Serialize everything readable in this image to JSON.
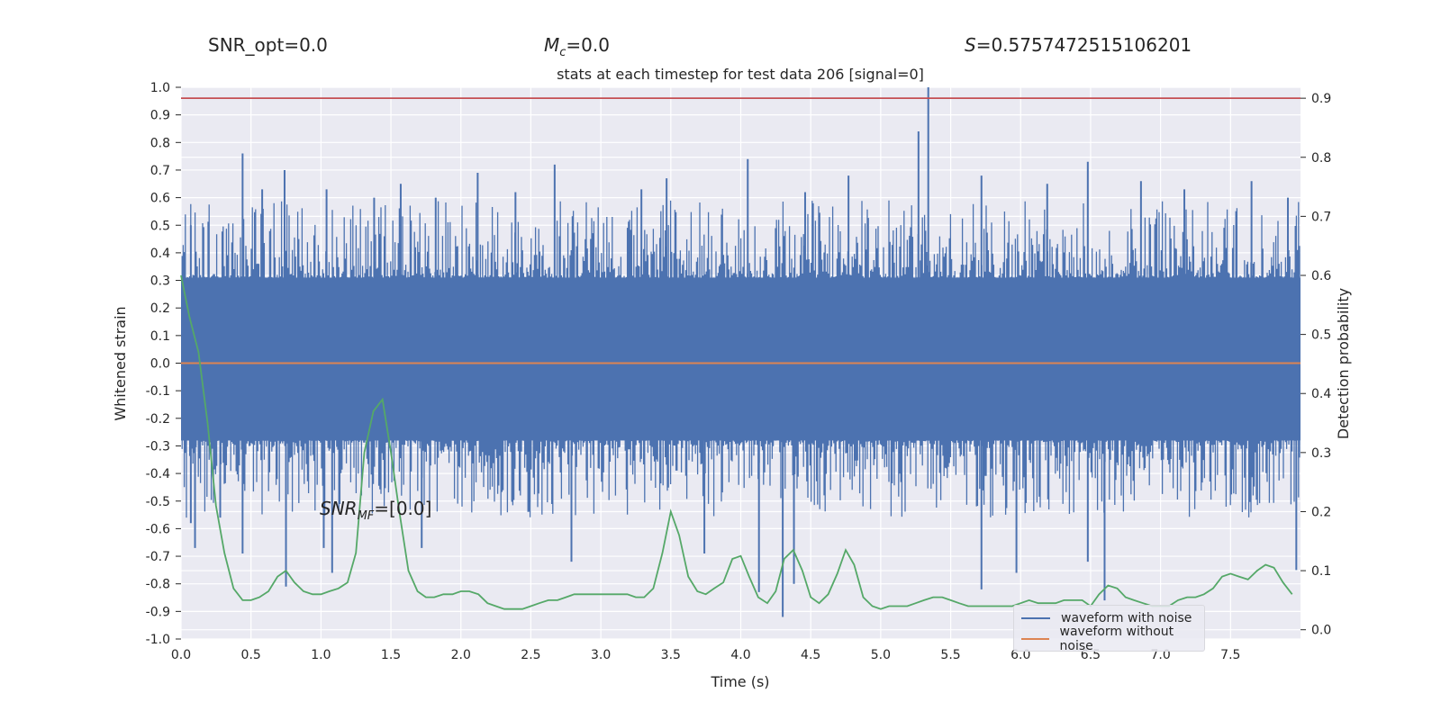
{
  "header": {
    "snr_opt": "SNR_opt=0.0",
    "mc_symbol": "M",
    "mc_sub": "c",
    "mc_value": "=0.0",
    "s_symbol": "S",
    "s_value": "=0.5757472515106201"
  },
  "annotation": {
    "symbol": "SNR",
    "sub": "MF",
    "value": "=[0.0]"
  },
  "chart_data": {
    "type": "line",
    "title": "stats at each timestep for test data 206 [signal=0]",
    "xlabel": "Time (s)",
    "ylabel": "Whitened strain",
    "y2label": "Detection probability",
    "xlim": [
      0.0,
      8.0
    ],
    "ylim": [
      -1.0,
      1.0
    ],
    "y2lim": [
      -0.0157,
      0.9185
    ],
    "xticks": [
      0.0,
      0.5,
      1.0,
      1.5,
      2.0,
      2.5,
      3.0,
      3.5,
      4.0,
      4.5,
      5.0,
      5.5,
      6.0,
      6.5,
      7.0,
      7.5
    ],
    "yticks": [
      -1.0,
      -0.9,
      -0.8,
      -0.7,
      -0.6,
      -0.5,
      -0.4,
      -0.3,
      -0.2,
      -0.1,
      0.0,
      0.1,
      0.2,
      0.3,
      0.4,
      0.5,
      0.6,
      0.7,
      0.8,
      0.9,
      1.0
    ],
    "y2ticks": [
      0.0,
      0.1,
      0.2,
      0.3,
      0.4,
      0.5,
      0.6,
      0.7,
      0.8,
      0.9
    ],
    "grid": true,
    "legend_position": "lower-right",
    "threshold_line": {
      "y": 0.9,
      "color": "#c44e52"
    },
    "series": [
      {
        "name": "waveform with noise",
        "color": "#4c72b0",
        "axis": "left",
        "kind": "dense-noise",
        "band_upper": 0.33,
        "band_lower": -0.3,
        "peaks": [
          [
            0.44,
            0.76
          ],
          [
            0.07,
            0.5
          ],
          [
            0.58,
            0.63
          ],
          [
            0.74,
            0.7
          ],
          [
            1.04,
            0.63
          ],
          [
            1.38,
            0.6
          ],
          [
            1.57,
            0.65
          ],
          [
            1.82,
            0.6
          ],
          [
            2.12,
            0.69
          ],
          [
            2.39,
            0.62
          ],
          [
            2.67,
            0.72
          ],
          [
            3.29,
            0.63
          ],
          [
            3.47,
            0.67
          ],
          [
            4.05,
            0.74
          ],
          [
            4.46,
            0.62
          ],
          [
            4.77,
            0.68
          ],
          [
            5.27,
            0.84
          ],
          [
            5.34,
            1.0
          ],
          [
            5.72,
            0.68
          ],
          [
            6.19,
            0.65
          ],
          [
            6.48,
            0.73
          ],
          [
            6.86,
            0.66
          ],
          [
            7.17,
            0.63
          ],
          [
            7.65,
            0.66
          ],
          [
            7.91,
            0.6
          ]
        ],
        "troughs": [
          [
            0.07,
            -0.58
          ],
          [
            0.1,
            -0.67
          ],
          [
            0.28,
            -0.56
          ],
          [
            0.44,
            -0.69
          ],
          [
            0.75,
            -0.81
          ],
          [
            1.02,
            -0.67
          ],
          [
            1.08,
            -0.76
          ],
          [
            1.72,
            -0.67
          ],
          [
            2.79,
            -0.72
          ],
          [
            3.74,
            -0.69
          ],
          [
            4.13,
            -0.83
          ],
          [
            4.3,
            -0.92
          ],
          [
            4.38,
            -0.8
          ],
          [
            5.72,
            -0.82
          ],
          [
            5.97,
            -0.76
          ],
          [
            6.48,
            -0.72
          ],
          [
            6.6,
            -0.86
          ],
          [
            7.97,
            -0.75
          ]
        ]
      },
      {
        "name": "waveform without noise",
        "color": "#dd8452",
        "axis": "left",
        "x": [
          0.0,
          8.0
        ],
        "y": [
          0.0,
          0.0
        ]
      },
      {
        "color": "#55a868",
        "axis": "right",
        "x": [
          0.0,
          0.06,
          0.125,
          0.19,
          0.25,
          0.31,
          0.375,
          0.44,
          0.5,
          0.56,
          0.625,
          0.69,
          0.75,
          0.81,
          0.875,
          0.94,
          1.0,
          1.06,
          1.125,
          1.19,
          1.25,
          1.31,
          1.375,
          1.44,
          1.5,
          1.56,
          1.625,
          1.69,
          1.75,
          1.81,
          1.875,
          1.94,
          2.0,
          2.06,
          2.125,
          2.19,
          2.25,
          2.31,
          2.375,
          2.44,
          2.5,
          2.56,
          2.625,
          2.69,
          2.75,
          2.81,
          2.875,
          2.94,
          3.0,
          3.06,
          3.125,
          3.19,
          3.25,
          3.31,
          3.375,
          3.44,
          3.5,
          3.56,
          3.625,
          3.69,
          3.75,
          3.81,
          3.875,
          3.94,
          4.0,
          4.06,
          4.125,
          4.19,
          4.25,
          4.31,
          4.375,
          4.44,
          4.5,
          4.56,
          4.625,
          4.69,
          4.75,
          4.81,
          4.875,
          4.94,
          5.0,
          5.06,
          5.125,
          5.19,
          5.25,
          5.31,
          5.375,
          5.44,
          5.5,
          5.56,
          5.625,
          5.69,
          5.75,
          5.81,
          5.875,
          5.94,
          6.0,
          6.06,
          6.125,
          6.19,
          6.25,
          6.31,
          6.375,
          6.44,
          6.5,
          6.56,
          6.625,
          6.69,
          6.75,
          6.81,
          6.875,
          6.94,
          7.0,
          7.06,
          7.125,
          7.19,
          7.25,
          7.31,
          7.375,
          7.44,
          7.5,
          7.56,
          7.625,
          7.69,
          7.75,
          7.81,
          7.875,
          7.94
        ],
        "y": [
          0.6,
          0.53,
          0.47,
          0.35,
          0.21,
          0.13,
          0.07,
          0.05,
          0.05,
          0.055,
          0.065,
          0.09,
          0.1,
          0.08,
          0.065,
          0.06,
          0.06,
          0.065,
          0.07,
          0.08,
          0.13,
          0.3,
          0.37,
          0.39,
          0.3,
          0.2,
          0.1,
          0.065,
          0.055,
          0.055,
          0.06,
          0.06,
          0.065,
          0.065,
          0.06,
          0.045,
          0.04,
          0.035,
          0.035,
          0.035,
          0.04,
          0.045,
          0.05,
          0.05,
          0.055,
          0.06,
          0.06,
          0.06,
          0.06,
          0.06,
          0.06,
          0.06,
          0.055,
          0.055,
          0.07,
          0.13,
          0.2,
          0.16,
          0.09,
          0.065,
          0.06,
          0.07,
          0.08,
          0.12,
          0.125,
          0.09,
          0.055,
          0.045,
          0.065,
          0.12,
          0.135,
          0.1,
          0.055,
          0.045,
          0.06,
          0.095,
          0.135,
          0.11,
          0.055,
          0.04,
          0.035,
          0.04,
          0.04,
          0.04,
          0.045,
          0.05,
          0.055,
          0.055,
          0.05,
          0.045,
          0.04,
          0.04,
          0.04,
          0.04,
          0.04,
          0.04,
          0.045,
          0.05,
          0.045,
          0.045,
          0.045,
          0.05,
          0.05,
          0.05,
          0.04,
          0.06,
          0.075,
          0.07,
          0.055,
          0.05,
          0.045,
          0.04,
          0.04,
          0.04,
          0.05,
          0.055,
          0.055,
          0.06,
          0.07,
          0.09,
          0.095,
          0.09,
          0.085,
          0.1,
          0.11,
          0.105,
          0.08,
          0.06
        ]
      }
    ]
  }
}
